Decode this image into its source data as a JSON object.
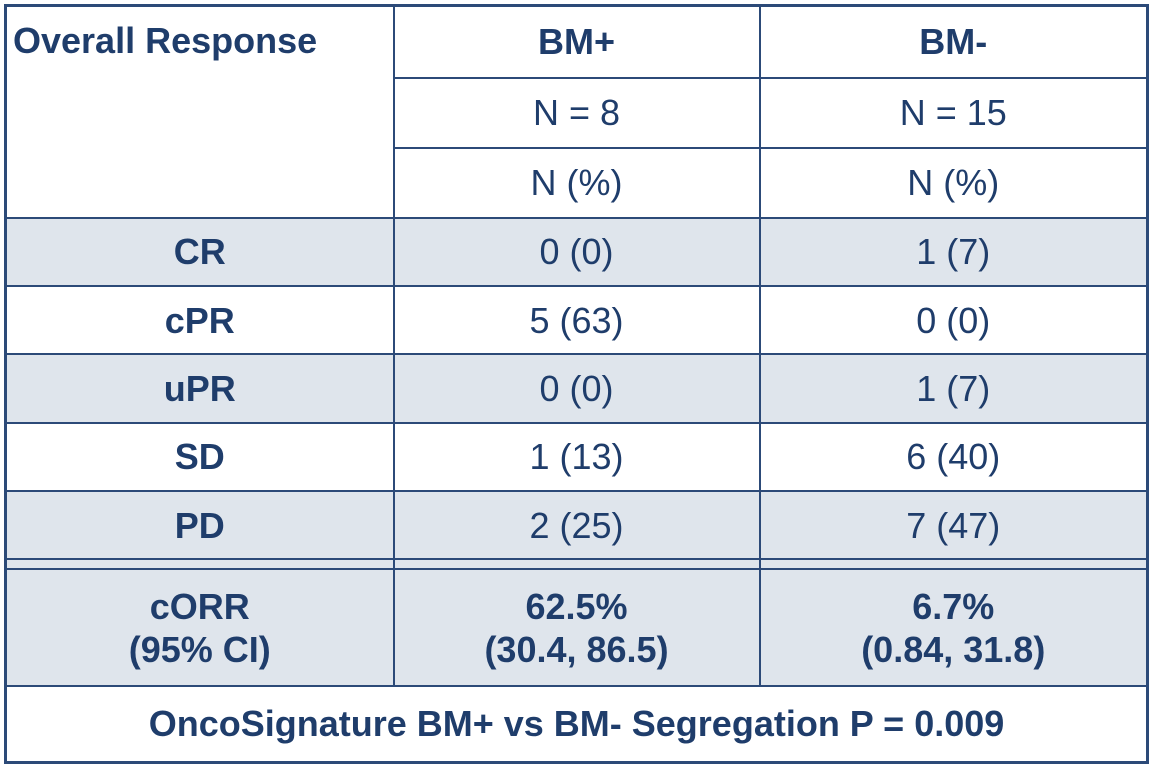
{
  "table": {
    "header": [
      "Overall Response",
      "BM+",
      "BM-"
    ],
    "n_row": [
      "N = 8",
      "N = 15"
    ],
    "unit_row": [
      "N (%)",
      "N (%)"
    ],
    "rows": [
      [
        "CR",
        "0 (0)",
        "1 (7)"
      ],
      [
        "cPR",
        "5 (63)",
        "0 (0)"
      ],
      [
        "uPR",
        "0 (0)",
        "1 (7)"
      ],
      [
        "SD",
        "1 (13)",
        "6 (40)"
      ],
      [
        "PD",
        "2 (25)",
        "7 (47)"
      ]
    ],
    "summary": [
      [
        "cORR",
        "(95% CI)"
      ],
      [
        "62.5%",
        "(30.4, 86.5)"
      ],
      [
        "6.7%",
        "(0.84, 31.8)"
      ]
    ],
    "footer": "OncoSignature BM+ vs BM- Segregation P = 0.009"
  }
}
